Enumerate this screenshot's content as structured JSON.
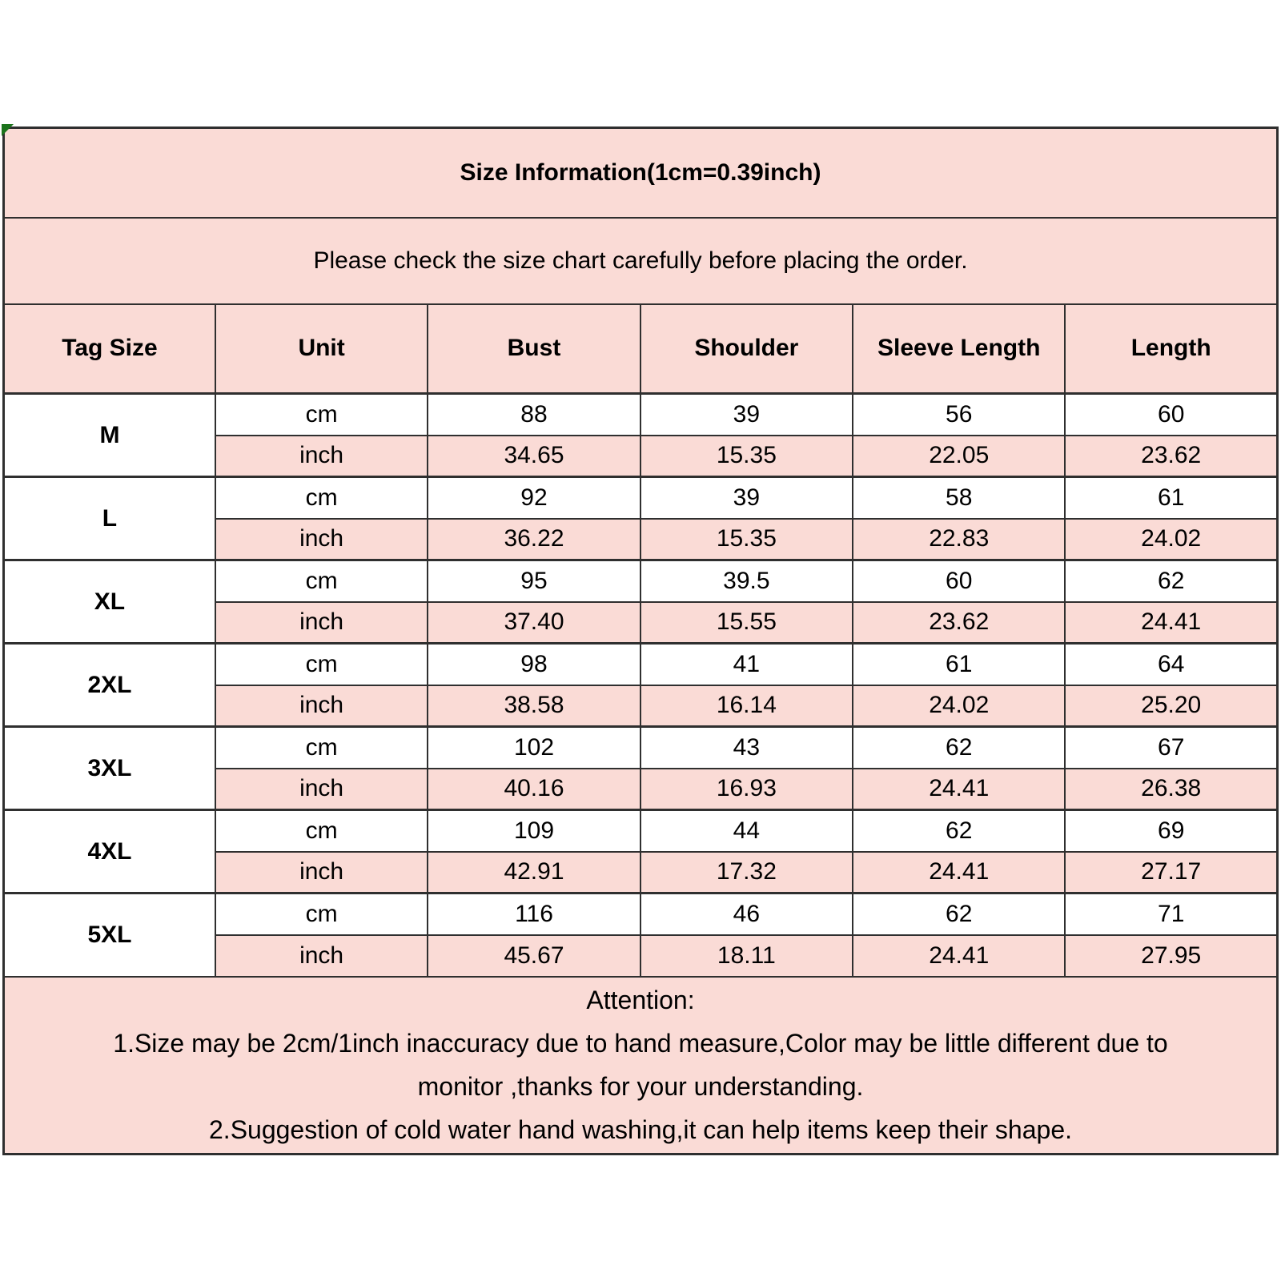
{
  "header": {
    "title": "Size Information(1cm=0.39inch)",
    "subtitle": "Please check the size chart carefully before placing the order."
  },
  "table": {
    "columns": [
      "Tag Size",
      "Unit",
      "Bust",
      "Shoulder",
      "Sleeve Length",
      "Length"
    ],
    "unit_labels": {
      "cm": "cm",
      "inch": "inch"
    },
    "rows": [
      {
        "tag": "M",
        "cm": [
          "88",
          "39",
          "56",
          "60"
        ],
        "inch": [
          "34.65",
          "15.35",
          "22.05",
          "23.62"
        ]
      },
      {
        "tag": "L",
        "cm": [
          "92",
          "39",
          "58",
          "61"
        ],
        "inch": [
          "36.22",
          "15.35",
          "22.83",
          "24.02"
        ]
      },
      {
        "tag": "XL",
        "cm": [
          "95",
          "39.5",
          "60",
          "62"
        ],
        "inch": [
          "37.40",
          "15.55",
          "23.62",
          "24.41"
        ]
      },
      {
        "tag": "2XL",
        "cm": [
          "98",
          "41",
          "61",
          "64"
        ],
        "inch": [
          "38.58",
          "16.14",
          "24.02",
          "25.20"
        ]
      },
      {
        "tag": "3XL",
        "cm": [
          "102",
          "43",
          "62",
          "67"
        ],
        "inch": [
          "40.16",
          "16.93",
          "24.41",
          "26.38"
        ]
      },
      {
        "tag": "4XL",
        "cm": [
          "109",
          "44",
          "62",
          "69"
        ],
        "inch": [
          "42.91",
          "17.32",
          "24.41",
          "27.17"
        ]
      },
      {
        "tag": "5XL",
        "cm": [
          "116",
          "46",
          "62",
          "71"
        ],
        "inch": [
          "45.67",
          "18.11",
          "24.41",
          "27.95"
        ]
      }
    ]
  },
  "attention": {
    "lines": [
      "Attention:",
      "1.Size may be 2cm/1inch inaccuracy due to hand measure,Color may be little different due to",
      "monitor ,thanks for your understanding.",
      "2.Suggestion of cold water hand washing,it can help items keep their shape."
    ]
  },
  "icons": {
    "corner_marker": "green-triangle"
  },
  "colors": {
    "cell_pink": "#fadbd6",
    "cell_white": "#ffffff",
    "border": "#2f2f2f",
    "corner_marker_green": "#1c741c",
    "text": "#000000"
  }
}
